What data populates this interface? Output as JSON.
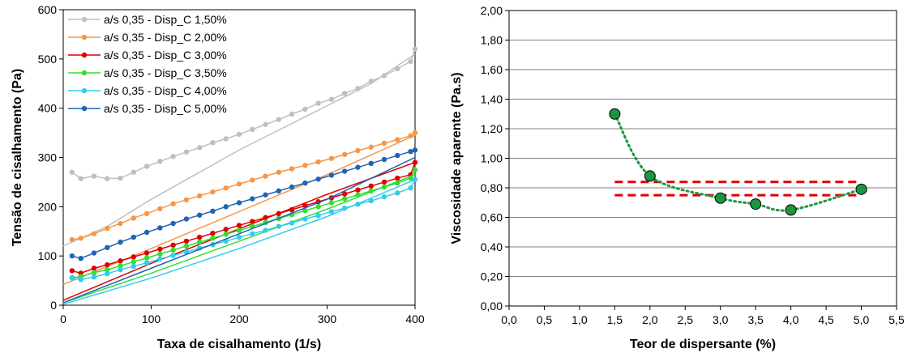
{
  "chart_data": [
    {
      "type": "line",
      "xlabel": "Taxa de cisalhamento (1/s)",
      "ylabel": "Tensão de cisalhamento (Pa)",
      "xlim": [
        0,
        400
      ],
      "ylim": [
        0,
        600
      ],
      "xticks": [
        "0",
        "100",
        "200",
        "300",
        "400"
      ],
      "yticks": [
        "0",
        "100",
        "200",
        "300",
        "400",
        "500",
        "600"
      ],
      "grid": false,
      "legend_position": "top-left",
      "series": [
        {
          "name": "a/s 0,35 - Disp_C 1,50%",
          "color": "#bfbfbf",
          "up": [
            [
              10,
              270
            ],
            [
              20,
              257
            ],
            [
              35,
              262
            ],
            [
              50,
              257
            ],
            [
              65,
              258
            ],
            [
              80,
              270
            ],
            [
              95,
              282
            ],
            [
              110,
              292
            ],
            [
              125,
              302
            ],
            [
              140,
              311
            ],
            [
              155,
              320
            ],
            [
              170,
              330
            ],
            [
              185,
              338
            ],
            [
              200,
              347
            ],
            [
              215,
              357
            ],
            [
              230,
              367
            ],
            [
              245,
              377
            ],
            [
              260,
              388
            ],
            [
              275,
              398
            ],
            [
              290,
              410
            ],
            [
              305,
              418
            ],
            [
              320,
              430
            ],
            [
              335,
              440
            ],
            [
              350,
              455
            ],
            [
              365,
              466
            ],
            [
              380,
              480
            ],
            [
              395,
              495
            ],
            [
              400,
              520
            ]
          ],
          "down": [
            [
              0,
              120
            ],
            [
              50,
              160
            ],
            [
              100,
              215
            ],
            [
              150,
              265
            ],
            [
              200,
              315
            ],
            [
              250,
              360
            ],
            [
              300,
              405
            ],
            [
              350,
              450
            ],
            [
              400,
              510
            ]
          ]
        },
        {
          "name": "a/s 0,35 - Disp_C 2,00%",
          "color": "#f79646",
          "up": [
            [
              10,
              133
            ],
            [
              20,
              136
            ],
            [
              35,
              145
            ],
            [
              50,
              156
            ],
            [
              65,
              166
            ],
            [
              80,
              177
            ],
            [
              95,
              186
            ],
            [
              110,
              196
            ],
            [
              125,
              206
            ],
            [
              140,
              214
            ],
            [
              155,
              222
            ],
            [
              170,
              230
            ],
            [
              185,
              238
            ],
            [
              200,
              246
            ],
            [
              215,
              254
            ],
            [
              230,
              262
            ],
            [
              245,
              270
            ],
            [
              260,
              277
            ],
            [
              275,
              284
            ],
            [
              290,
              291
            ],
            [
              305,
              298
            ],
            [
              320,
              306
            ],
            [
              335,
              314
            ],
            [
              350,
              321
            ],
            [
              365,
              329
            ],
            [
              380,
              336
            ],
            [
              395,
              344
            ],
            [
              400,
              350
            ]
          ],
          "down": [
            [
              0,
              42
            ],
            [
              100,
              115
            ],
            [
              200,
              190
            ],
            [
              300,
              265
            ],
            [
              400,
              345
            ]
          ]
        },
        {
          "name": "a/s 0,35 - Disp_C 3,00%",
          "color": "#e00000",
          "up": [
            [
              10,
              70
            ],
            [
              20,
              65
            ],
            [
              35,
              75
            ],
            [
              50,
              82
            ],
            [
              65,
              90
            ],
            [
              80,
              98
            ],
            [
              95,
              106
            ],
            [
              110,
              114
            ],
            [
              125,
              122
            ],
            [
              140,
              130
            ],
            [
              155,
              138
            ],
            [
              170,
              146
            ],
            [
              185,
              154
            ],
            [
              200,
              162
            ],
            [
              215,
              170
            ],
            [
              230,
              178
            ],
            [
              245,
              186
            ],
            [
              260,
              194
            ],
            [
              275,
              202
            ],
            [
              290,
              210
            ],
            [
              305,
              218
            ],
            [
              320,
              226
            ],
            [
              335,
              234
            ],
            [
              350,
              242
            ],
            [
              365,
              250
            ],
            [
              380,
              258
            ],
            [
              395,
              265
            ],
            [
              400,
              290
            ]
          ],
          "down": [
            [
              0,
              10
            ],
            [
              100,
              85
            ],
            [
              200,
              155
            ],
            [
              300,
              225
            ],
            [
              400,
              290
            ]
          ]
        },
        {
          "name": "a/s 0,35 - Disp_C 3,50%",
          "color": "#33dd33",
          "up": [
            [
              10,
              56
            ],
            [
              20,
              58
            ],
            [
              35,
              66
            ],
            [
              50,
              72
            ],
            [
              65,
              80
            ],
            [
              80,
              88
            ],
            [
              95,
              96
            ],
            [
              110,
              104
            ],
            [
              125,
              112
            ],
            [
              140,
              120
            ],
            [
              155,
              128
            ],
            [
              170,
              136
            ],
            [
              185,
              144
            ],
            [
              200,
              152
            ],
            [
              215,
              160
            ],
            [
              230,
              168
            ],
            [
              245,
              176
            ],
            [
              260,
              184
            ],
            [
              275,
              192
            ],
            [
              290,
              200
            ],
            [
              305,
              208
            ],
            [
              320,
              216
            ],
            [
              335,
              224
            ],
            [
              350,
              232
            ],
            [
              365,
              240
            ],
            [
              380,
              248
            ],
            [
              395,
              258
            ],
            [
              400,
              275
            ]
          ],
          "down": [
            [
              0,
              5
            ],
            [
              100,
              65
            ],
            [
              200,
              130
            ],
            [
              300,
              195
            ],
            [
              400,
              265
            ]
          ]
        },
        {
          "name": "a/s 0,35 - Disp_C 4,00%",
          "color": "#33ccee",
          "up": [
            [
              10,
              55
            ],
            [
              20,
              52
            ],
            [
              35,
              57
            ],
            [
              50,
              64
            ],
            [
              65,
              72
            ],
            [
              80,
              79
            ],
            [
              95,
              86
            ],
            [
              110,
              94
            ],
            [
              125,
              101
            ],
            [
              140,
              108
            ],
            [
              155,
              116
            ],
            [
              170,
              123
            ],
            [
              185,
              130
            ],
            [
              200,
              138
            ],
            [
              215,
              145
            ],
            [
              230,
              152
            ],
            [
              245,
              160
            ],
            [
              260,
              167
            ],
            [
              275,
              175
            ],
            [
              290,
              182
            ],
            [
              305,
              190
            ],
            [
              320,
              197
            ],
            [
              335,
              205
            ],
            [
              350,
              212
            ],
            [
              365,
              220
            ],
            [
              380,
              228
            ],
            [
              395,
              238
            ],
            [
              400,
              255
            ]
          ],
          "down": [
            [
              0,
              2
            ],
            [
              100,
              55
            ],
            [
              200,
              115
            ],
            [
              300,
              180
            ],
            [
              400,
              255
            ]
          ]
        },
        {
          "name": "a/s 0,35 - Disp_C 5,00%",
          "color": "#1f64b5",
          "up": [
            [
              10,
              100
            ],
            [
              20,
              95
            ],
            [
              35,
              106
            ],
            [
              50,
              117
            ],
            [
              65,
              128
            ],
            [
              80,
              138
            ],
            [
              95,
              148
            ],
            [
              110,
              157
            ],
            [
              125,
              166
            ],
            [
              140,
              175
            ],
            [
              155,
              183
            ],
            [
              170,
              191
            ],
            [
              185,
              200
            ],
            [
              200,
              208
            ],
            [
              215,
              216
            ],
            [
              230,
              224
            ],
            [
              245,
              232
            ],
            [
              260,
              240
            ],
            [
              275,
              248
            ],
            [
              290,
              256
            ],
            [
              305,
              264
            ],
            [
              320,
              272
            ],
            [
              335,
              280
            ],
            [
              350,
              288
            ],
            [
              365,
              296
            ],
            [
              380,
              304
            ],
            [
              395,
              312
            ],
            [
              400,
              315
            ]
          ],
          "down": [
            [
              0,
              5
            ],
            [
              100,
              75
            ],
            [
              200,
              145
            ],
            [
              300,
              215
            ],
            [
              400,
              300
            ]
          ]
        }
      ]
    },
    {
      "type": "scatter",
      "xlabel": "Teor de dispersante (%)",
      "ylabel": "Viscosidade aparente (Pa.s)",
      "xlim": [
        0,
        5.5
      ],
      "ylim": [
        0,
        2
      ],
      "xticks": [
        "0,0",
        "0,5",
        "1,0",
        "1,5",
        "2,0",
        "2,5",
        "3,0",
        "3,5",
        "4,0",
        "4,5",
        "5,0",
        "5,5"
      ],
      "yticks": [
        "0,00",
        "0,20",
        "0,40",
        "0,60",
        "0,80",
        "1,00",
        "1,20",
        "1,40",
        "1,60",
        "1,80",
        "2,00"
      ],
      "grid": true,
      "marker_color": "#1a9641",
      "trend_color": "#1a9641",
      "points": [
        [
          1.5,
          1.3
        ],
        [
          2.0,
          0.88
        ],
        [
          3.0,
          0.73
        ],
        [
          3.5,
          0.69
        ],
        [
          4.0,
          0.65
        ],
        [
          5.0,
          0.79
        ]
      ],
      "reference_lines": {
        "color": "#e00000",
        "y": [
          0.84,
          0.75
        ],
        "x_range": [
          1.5,
          5.0
        ]
      }
    }
  ]
}
